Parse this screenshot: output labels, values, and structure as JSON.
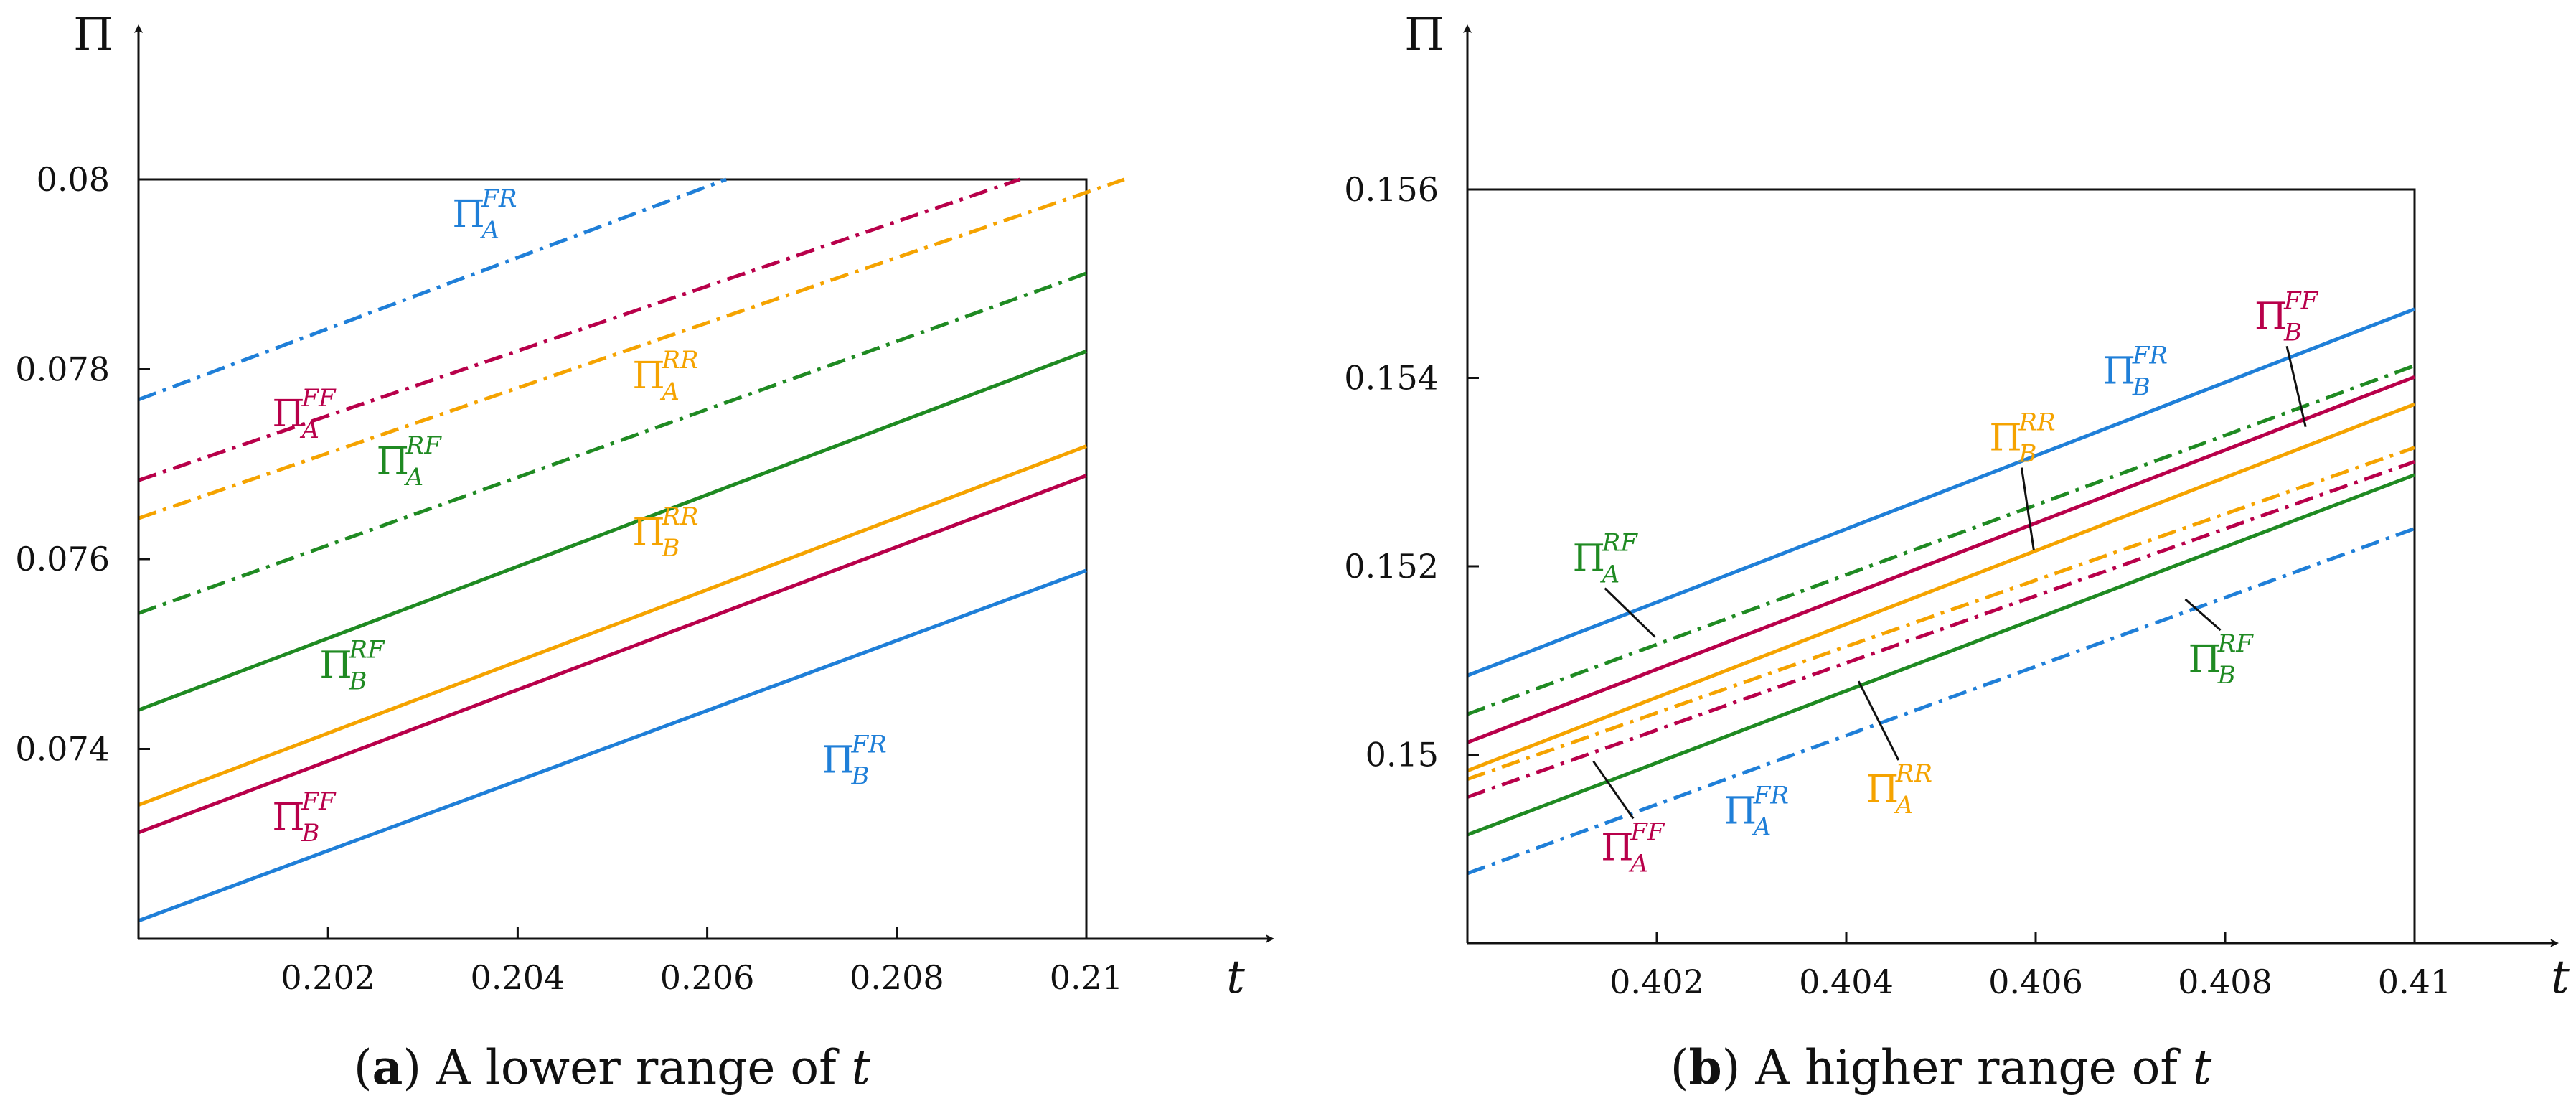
{
  "colors": {
    "blue": "#1f7fd8",
    "crimson": "#b8004a",
    "orange": "#f5a300",
    "green": "#1f8a22",
    "axis": "#111111"
  },
  "chart_data": [
    {
      "type": "line",
      "caption_letter": "a",
      "caption_text": "A lower range of ",
      "caption_var": "t",
      "xlabel": "t",
      "ylabel": "Π",
      "xlim": [
        0.2,
        0.21
      ],
      "ylim": [
        0.072,
        0.08
      ],
      "xticks": [
        0.202,
        0.204,
        0.206,
        0.208,
        0.21
      ],
      "xtick_labels": [
        "0.202",
        "0.204",
        "0.206",
        "0.208",
        "0.21"
      ],
      "yticks": [
        0.074,
        0.076,
        0.078,
        0.08
      ],
      "ytick_labels": [
        "0.074",
        "0.076",
        "0.078",
        "0.08"
      ],
      "series": [
        {
          "name": "Π_A^FR",
          "base": "Π",
          "sub": "A",
          "sup": "FR",
          "color": "blue",
          "style": "dashdot",
          "x": [
            0.2,
            0.2062
          ],
          "y": [
            0.07768,
            0.08
          ]
        },
        {
          "name": "Π_A^FF",
          "base": "Π",
          "sub": "A",
          "sup": "FF",
          "color": "crimson",
          "style": "dashdot",
          "x": [
            0.2,
            0.2093
          ],
          "y": [
            0.07683,
            0.08
          ]
        },
        {
          "name": "Π_A^RR",
          "base": "Π",
          "sub": "A",
          "sup": "RR",
          "color": "orange",
          "style": "dashdot",
          "x": [
            0.2,
            0.2104
          ],
          "y": [
            0.07643,
            0.08
          ]
        },
        {
          "name": "Π_A^RF",
          "base": "Π",
          "sub": "A",
          "sup": "RF",
          "color": "green",
          "style": "dashdot",
          "x": [
            0.2,
            0.21
          ],
          "y": [
            0.07543,
            0.07901
          ]
        },
        {
          "name": "Π_B^RF",
          "base": "Π",
          "sub": "B",
          "sup": "RF",
          "color": "green",
          "style": "solid",
          "x": [
            0.2,
            0.21
          ],
          "y": [
            0.07441,
            0.07819
          ]
        },
        {
          "name": "Π_B^RR",
          "base": "Π",
          "sub": "B",
          "sup": "RR",
          "color": "orange",
          "style": "solid",
          "x": [
            0.2,
            0.21
          ],
          "y": [
            0.07341,
            0.07719
          ]
        },
        {
          "name": "Π_B^FF",
          "base": "Π",
          "sub": "B",
          "sup": "FF",
          "color": "crimson",
          "style": "solid",
          "x": [
            0.2,
            0.21
          ],
          "y": [
            0.07312,
            0.07688
          ]
        },
        {
          "name": "Π_B^FR",
          "base": "Π",
          "sub": "B",
          "sup": "FR",
          "color": "blue",
          "style": "solid",
          "x": [
            0.2,
            0.21
          ],
          "y": [
            0.07219,
            0.07588
          ]
        }
      ],
      "annotations": [
        {
          "series": "Π_A^FR",
          "at": [
            0.2035,
            0.0795
          ]
        },
        {
          "series": "Π_A^FF",
          "at": [
            0.2016,
            0.0774
          ]
        },
        {
          "series": "Π_A^RR",
          "at": [
            0.2054,
            0.0778
          ]
        },
        {
          "series": "Π_A^RF",
          "at": [
            0.2027,
            0.0769
          ]
        },
        {
          "series": "Π_B^RR",
          "at": [
            0.2054,
            0.07615
          ]
        },
        {
          "series": "Π_B^RF",
          "at": [
            0.2021,
            0.07475
          ]
        },
        {
          "series": "Π_B^FF",
          "at": [
            0.2016,
            0.07315
          ]
        },
        {
          "series": "Π_B^FR",
          "at": [
            0.2074,
            0.07375
          ]
        }
      ]
    },
    {
      "type": "line",
      "caption_letter": "b",
      "caption_text": "A higher range of ",
      "caption_var": "t",
      "xlabel": "t",
      "ylabel": "Π",
      "xlim": [
        0.4,
        0.41
      ],
      "ylim": [
        0.148,
        0.156
      ],
      "xticks": [
        0.402,
        0.404,
        0.406,
        0.408,
        0.41
      ],
      "xtick_labels": [
        "0.402",
        "0.404",
        "0.406",
        "0.408",
        "0.41"
      ],
      "yticks": [
        0.15,
        0.152,
        0.154,
        0.156
      ],
      "ytick_labels": [
        "0.15",
        "0.152",
        "0.154",
        "0.156"
      ],
      "series": [
        {
          "name": "Π_B^FR",
          "base": "Π",
          "sub": "B",
          "sup": "FR",
          "color": "blue",
          "style": "solid",
          "x": [
            0.4,
            0.41
          ],
          "y": [
            0.15084,
            0.15473
          ]
        },
        {
          "name": "Π_A^RF",
          "base": "Π",
          "sub": "A",
          "sup": "RF",
          "color": "green",
          "style": "dashdot",
          "x": [
            0.4,
            0.41
          ],
          "y": [
            0.15043,
            0.15413
          ]
        },
        {
          "name": "Π_B^FF",
          "base": "Π",
          "sub": "B",
          "sup": "FF",
          "color": "crimson",
          "style": "solid",
          "x": [
            0.4,
            0.41
          ],
          "y": [
            0.15013,
            0.15401
          ]
        },
        {
          "name": "Π_B^RR",
          "base": "Π",
          "sub": "B",
          "sup": "RR",
          "color": "orange",
          "style": "solid",
          "x": [
            0.4,
            0.41
          ],
          "y": [
            0.14983,
            0.15372
          ]
        },
        {
          "name": "Π_A^RR",
          "base": "Π",
          "sub": "A",
          "sup": "RR",
          "color": "orange",
          "style": "dashdot",
          "x": [
            0.4,
            0.41
          ],
          "y": [
            0.14974,
            0.15326
          ]
        },
        {
          "name": "Π_A^FF",
          "base": "Π",
          "sub": "A",
          "sup": "FF",
          "color": "crimson",
          "style": "dashdot",
          "x": [
            0.4,
            0.41
          ],
          "y": [
            0.14955,
            0.15311
          ]
        },
        {
          "name": "Π_B^RF",
          "base": "Π",
          "sub": "B",
          "sup": "RF",
          "color": "green",
          "style": "solid",
          "x": [
            0.4,
            0.41
          ],
          "y": [
            0.14915,
            0.15297
          ]
        },
        {
          "name": "Π_A^FR",
          "base": "Π",
          "sub": "A",
          "sup": "FR",
          "color": "blue",
          "style": "dashdot",
          "x": [
            0.4,
            0.41
          ],
          "y": [
            0.14874,
            0.1524
          ]
        }
      ],
      "annotations": [
        {
          "series": "Π_B^FF",
          "at": [
            0.4085,
            0.15452
          ],
          "pointer": [
            0.40885,
            0.15348
          ]
        },
        {
          "series": "Π_B^FR",
          "at": [
            0.4069,
            0.15394
          ]
        },
        {
          "series": "Π_B^RR",
          "at": [
            0.4057,
            0.15323
          ],
          "pointer": [
            0.40598,
            0.15217
          ]
        },
        {
          "series": "Π_A^RF",
          "at": [
            0.4013,
            0.15195
          ],
          "pointer": [
            0.40198,
            0.15125
          ]
        },
        {
          "series": "Π_B^RF",
          "at": [
            0.4078,
            0.15088
          ],
          "pointer": [
            0.40758,
            0.15165
          ]
        },
        {
          "series": "Π_A^RR",
          "at": [
            0.4044,
            0.1495
          ],
          "pointer": [
            0.40413,
            0.15078
          ]
        },
        {
          "series": "Π_A^FR",
          "at": [
            0.4029,
            0.14927
          ]
        },
        {
          "series": "Π_A^FF",
          "at": [
            0.4016,
            0.14888
          ],
          "pointer": [
            0.40133,
            0.14993
          ]
        }
      ]
    }
  ]
}
